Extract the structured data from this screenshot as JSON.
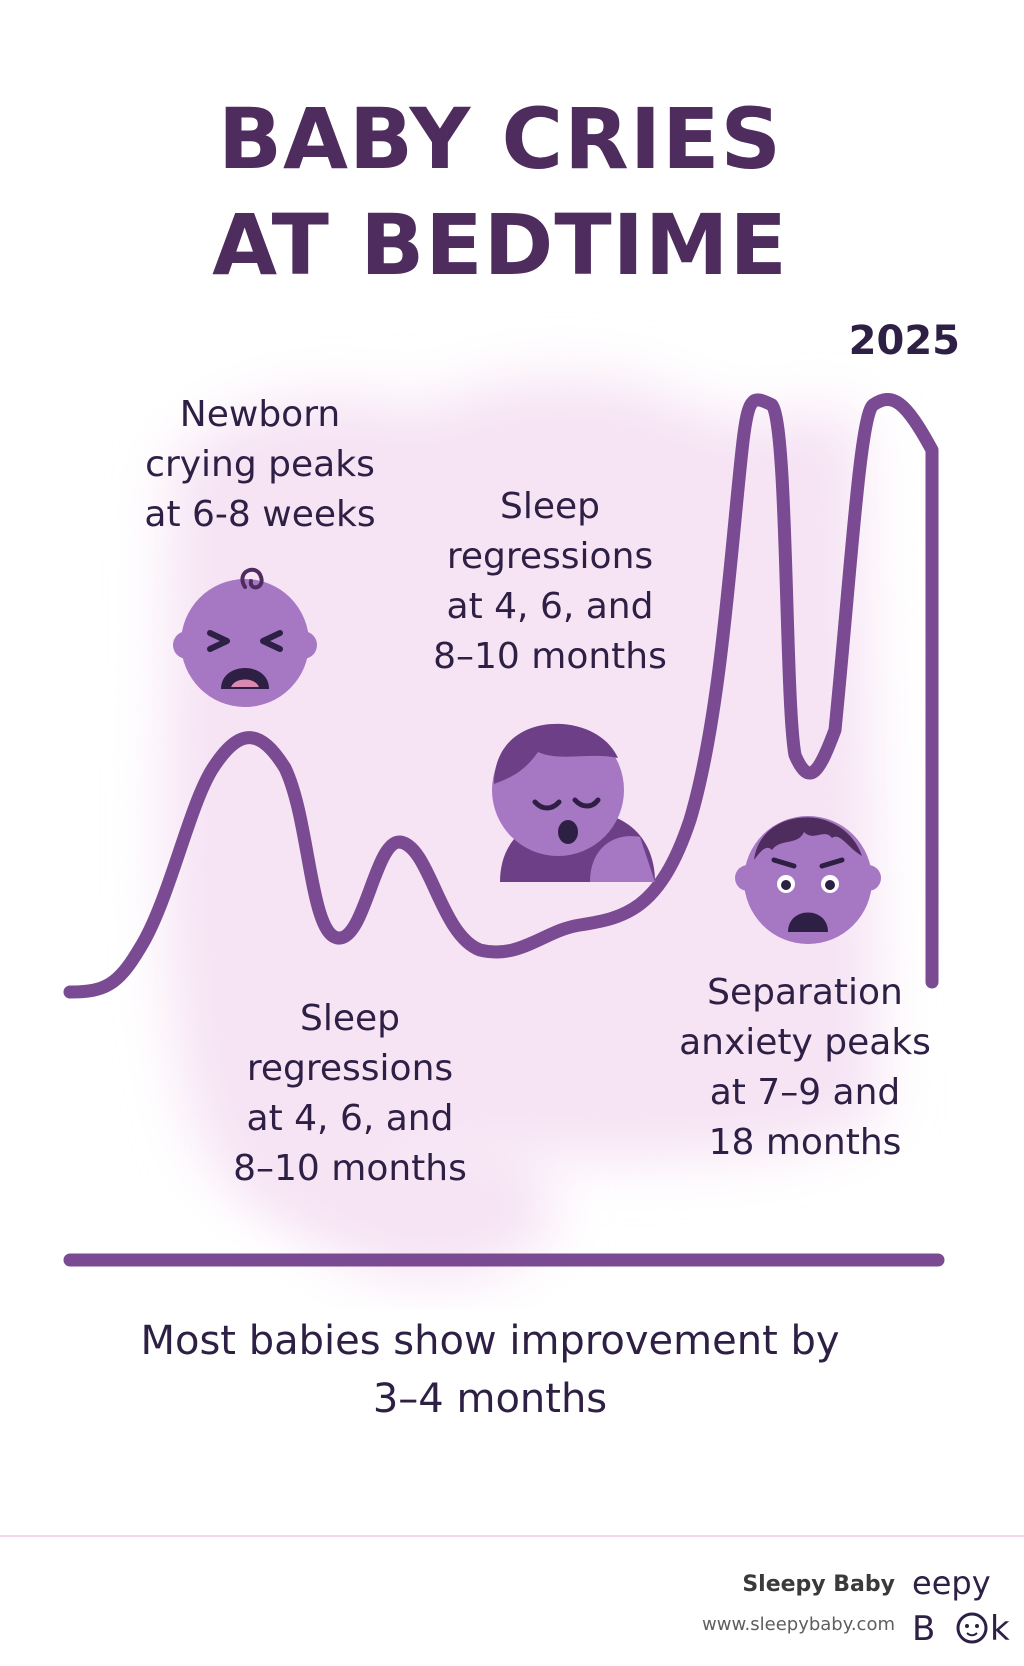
{
  "title": {
    "line1": "BABY CRIES",
    "line2": "AT BEDTIME"
  },
  "year": "2025",
  "annotations": {
    "newborn": [
      "Newborn",
      "crying peaks",
      "at 6-8 weeks"
    ],
    "regressions_upper": [
      "Sleep",
      "regressions",
      "at 4, 6, and",
      "8–10 months"
    ],
    "regressions_lower": [
      "Sleep",
      "regressions",
      "at 4, 6, and",
      "8–10 months"
    ],
    "separation": [
      "Separation",
      "anxiety peaks",
      "at 7–9 and",
      "18 months"
    ]
  },
  "bottom_note": {
    "line1": "Most babies show improvement by",
    "line2": "3–4 months"
  },
  "footer": {
    "brand": "Sleepy Baby",
    "url": "www.sleepybaby.com",
    "logo_text": "Sleepy Baby"
  },
  "icons": [
    "crying-baby-icon",
    "sleeping-baby-icon",
    "worried-baby-icon",
    "sleepy-baby-logo-icon"
  ],
  "colors": {
    "curve": "#7a4a92",
    "title": "#4e2c5e",
    "text": "#2e1f45",
    "background_glow": "#f6e3f4",
    "face": "#a677c2",
    "face_dark": "#6c3f86"
  }
}
